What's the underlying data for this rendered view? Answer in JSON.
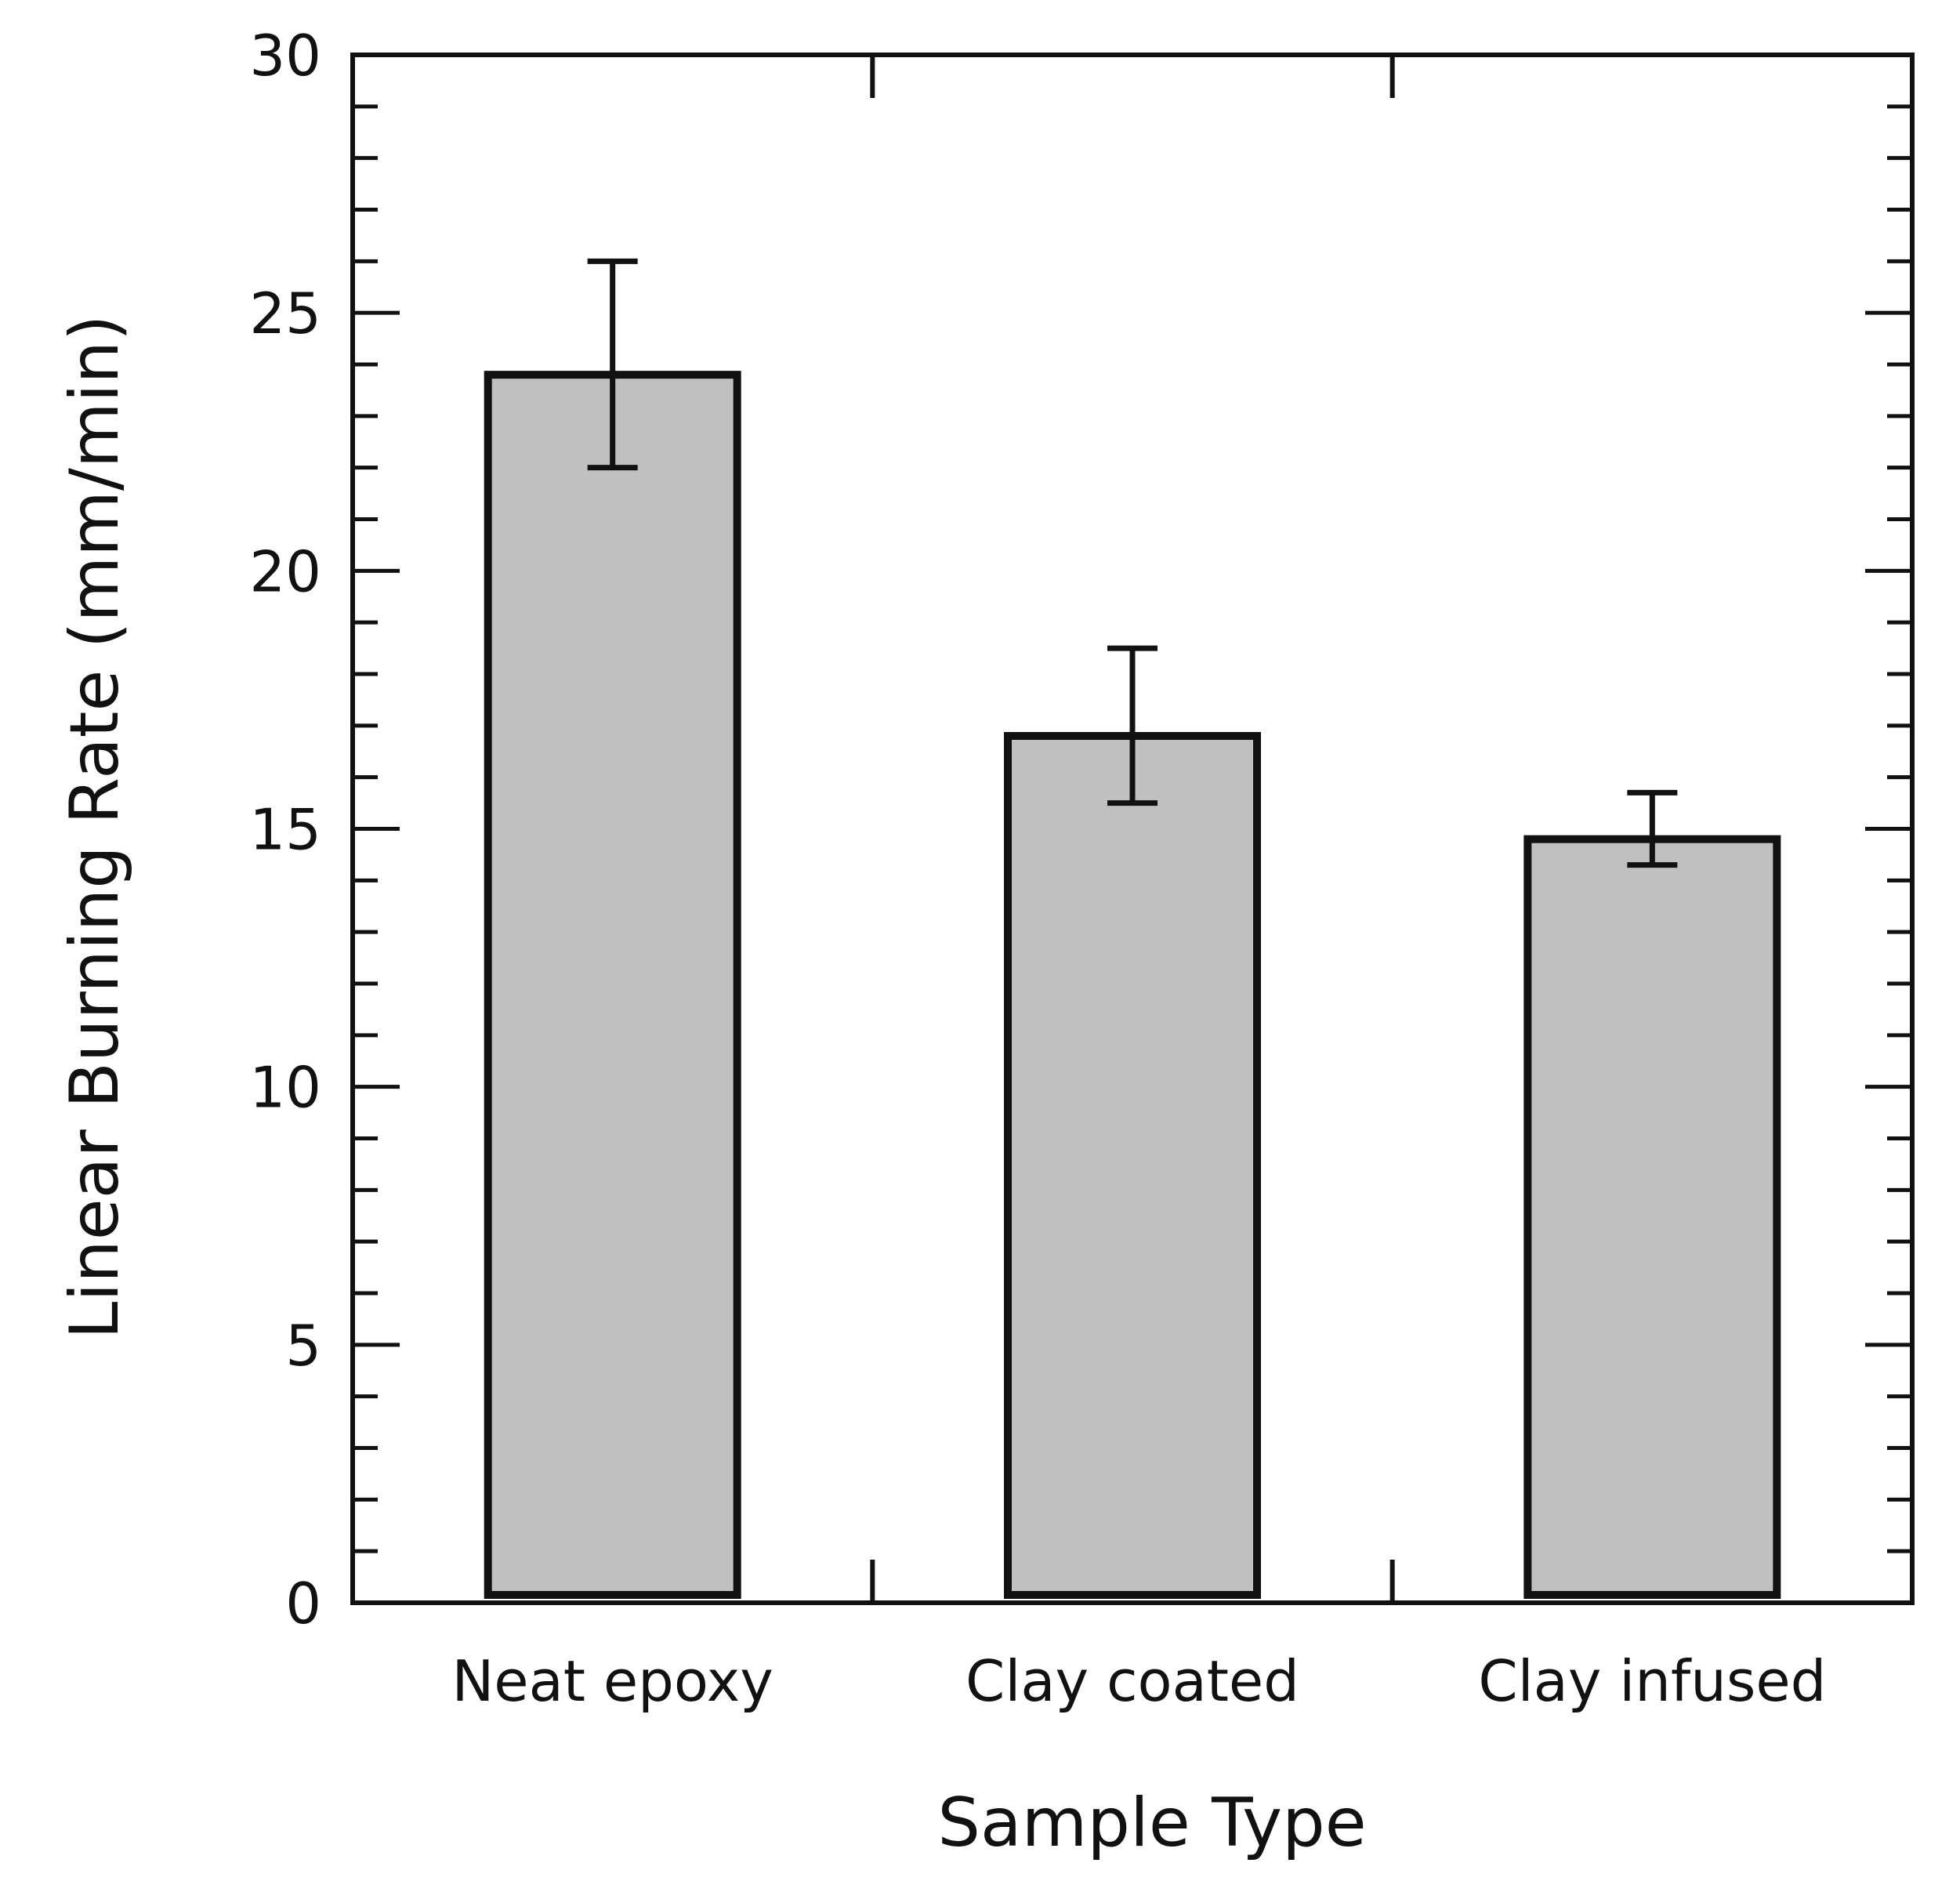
{
  "chart_data": {
    "type": "bar",
    "title": "",
    "xlabel": "Sample Type",
    "ylabel": "Linear Burning Rate (mm/min)",
    "categories": [
      "Neat epoxy",
      "Clay coated",
      "Clay infused"
    ],
    "values": [
      23.8,
      16.8,
      14.8
    ],
    "error_low": [
      22.0,
      15.5,
      14.3
    ],
    "error_high": [
      26.0,
      18.5,
      15.7
    ],
    "ylim": [
      0,
      30
    ],
    "yticks": [
      0,
      5,
      10,
      15,
      20,
      25,
      30
    ],
    "ytick_labels": [
      "0",
      "5",
      "10",
      "15",
      "20",
      "25",
      "30"
    ],
    "minor_step": 1,
    "grid": false,
    "legend": "none",
    "colors": {
      "bar_fill": "#c0c0c0",
      "bar_stroke": "#111111",
      "axis": "#111111"
    }
  }
}
